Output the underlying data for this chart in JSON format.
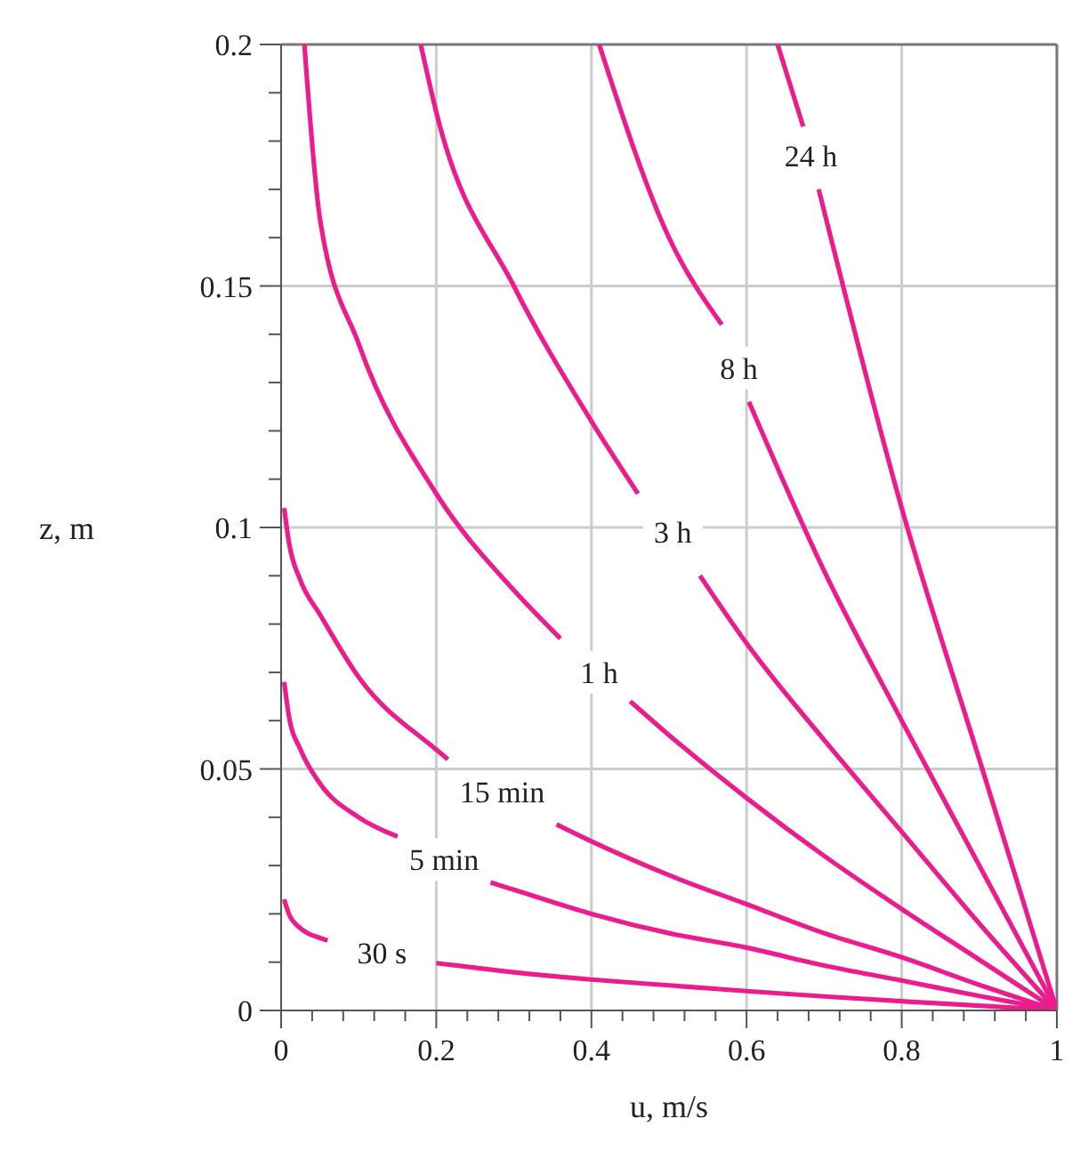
{
  "chart_data": {
    "type": "line",
    "xlabel": "u, m/s",
    "ylabel": "z, m",
    "xlim": [
      0,
      1
    ],
    "ylim": [
      0,
      0.2
    ],
    "xticks": [
      0,
      {
        "value": 0.04,
        "label": null
      },
      {
        "value": 0.08,
        "label": null
      },
      {
        "value": 0.12,
        "label": null
      },
      {
        "value": 0.16,
        "label": null
      },
      0.2,
      {
        "value": 0.24,
        "label": null
      },
      {
        "value": 0.28,
        "label": null
      },
      {
        "value": 0.32,
        "label": null
      },
      {
        "value": 0.36,
        "label": null
      },
      0.4,
      {
        "value": 0.44,
        "label": null
      },
      {
        "value": 0.48,
        "label": null
      },
      {
        "value": 0.52,
        "label": null
      },
      {
        "value": 0.56,
        "label": null
      },
      0.6,
      {
        "value": 0.64,
        "label": null
      },
      {
        "value": 0.68,
        "label": null
      },
      {
        "value": 0.72,
        "label": null
      },
      {
        "value": 0.76,
        "label": null
      },
      0.8,
      {
        "value": 0.84,
        "label": null
      },
      {
        "value": 0.88,
        "label": null
      },
      {
        "value": 0.92,
        "label": null
      },
      {
        "value": 0.96,
        "label": null
      },
      1
    ],
    "yticks": [
      0,
      {
        "value": 0.01,
        "label": null
      },
      {
        "value": 0.02,
        "label": null
      },
      {
        "value": 0.03,
        "label": null
      },
      {
        "value": 0.04,
        "label": null
      },
      0.05,
      {
        "value": 0.06,
        "label": null
      },
      {
        "value": 0.07,
        "label": null
      },
      {
        "value": 0.08,
        "label": null
      },
      {
        "value": 0.09,
        "label": null
      },
      0.1,
      {
        "value": 0.11,
        "label": null
      },
      {
        "value": 0.12,
        "label": null
      },
      {
        "value": 0.13,
        "label": null
      },
      {
        "value": 0.14,
        "label": null
      },
      0.15,
      {
        "value": 0.16,
        "label": null
      },
      {
        "value": 0.17,
        "label": null
      },
      {
        "value": 0.18,
        "label": null
      },
      {
        "value": 0.19,
        "label": null
      },
      0.2
    ],
    "grid": true,
    "marker": "none",
    "line_style": "solid",
    "series": [
      {
        "color": "#ec1c8c",
        "x": [
          0.004,
          0.01,
          0.025,
          0.05,
          0.06,
          0.13,
          0.2,
          0.3,
          0.4,
          0.5,
          0.6,
          0.7,
          0.8,
          0.9,
          1
        ],
        "values": [
          0.023,
          0.02,
          0.017,
          0.015,
          0.0145,
          null,
          0.0098,
          0.0079,
          0.0064,
          0.0052,
          0.004,
          0.0029,
          0.0019,
          0.001,
          0
        ]
      },
      {
        "color": "#ec1c8c",
        "x": [
          0.004,
          0.01,
          0.025,
          0.05,
          0.1,
          0.15,
          0.21,
          0.27,
          0.3,
          0.4,
          0.5,
          0.6,
          0.7,
          0.8,
          0.9,
          1
        ],
        "values": [
          0.068,
          0.061,
          0.054,
          0.047,
          0.04,
          0.036,
          null,
          0.0265,
          0.025,
          0.02,
          0.016,
          0.013,
          0.0093,
          0.0062,
          0.003,
          0
        ]
      },
      {
        "color": "#ec1c8c",
        "x": [
          0.004,
          0.01,
          0.025,
          0.05,
          0.1,
          0.2,
          0.215,
          0.285,
          0.355,
          0.4,
          0.5,
          0.6,
          0.7,
          0.8,
          0.9,
          1
        ],
        "values": [
          0.104,
          0.097,
          0.089,
          0.082,
          0.069,
          0.054,
          0.052,
          null,
          0.0385,
          0.035,
          0.028,
          0.022,
          0.016,
          0.011,
          0.0053,
          0
        ]
      },
      {
        "color": "#ec1c8c",
        "x": [
          0.03,
          0.05,
          0.1,
          0.2,
          0.3,
          0.36,
          0.41,
          0.45,
          0.5,
          0.6,
          0.7,
          0.8,
          0.9,
          1
        ],
        "values": [
          0.2,
          0.164,
          0.138,
          0.107,
          0.087,
          0.077,
          null,
          0.064,
          0.057,
          0.044,
          0.032,
          0.021,
          0.0105,
          0
        ]
      },
      {
        "color": "#ec1c8c",
        "x": [
          0.18,
          0.2,
          0.3,
          0.4,
          0.46,
          0.505,
          0.54,
          0.6,
          0.7,
          0.8,
          0.9,
          1
        ],
        "values": [
          0.2,
          0.186,
          0.15,
          0.122,
          0.107,
          null,
          0.09,
          0.076,
          0.056,
          0.037,
          0.018,
          0
        ]
      },
      {
        "color": "#ec1c8c",
        "x": [
          0.41,
          0.5,
          0.568,
          0.59,
          0.603,
          0.7,
          0.8,
          0.9,
          1
        ],
        "values": [
          0.2,
          0.16,
          0.142,
          null,
          0.126,
          0.091,
          0.06,
          0.03,
          0
        ]
      },
      {
        "color": "#ec1c8c",
        "x": [
          0.64,
          0.673,
          0.683,
          0.693,
          0.8,
          0.9,
          1
        ],
        "values": [
          0.2,
          0.183,
          null,
          0.17,
          0.104,
          0.052,
          0
        ]
      }
    ],
    "annotations": [
      {
        "text": "30 s",
        "x": 0.13,
        "y": 0.012
      },
      "5 min",
      "15 min",
      {
        "text": "1 h",
        "x": 0.41,
        "y": 0.07
      },
      {
        "text": "3 h",
        "x": 0.505,
        "y": 0.099
      },
      {
        "text": "8 h",
        "x": 0.59,
        "y": 0.133
      },
      {
        "text": "24 h",
        "x": 0.683,
        "y": 0.177
      }
    ]
  }
}
